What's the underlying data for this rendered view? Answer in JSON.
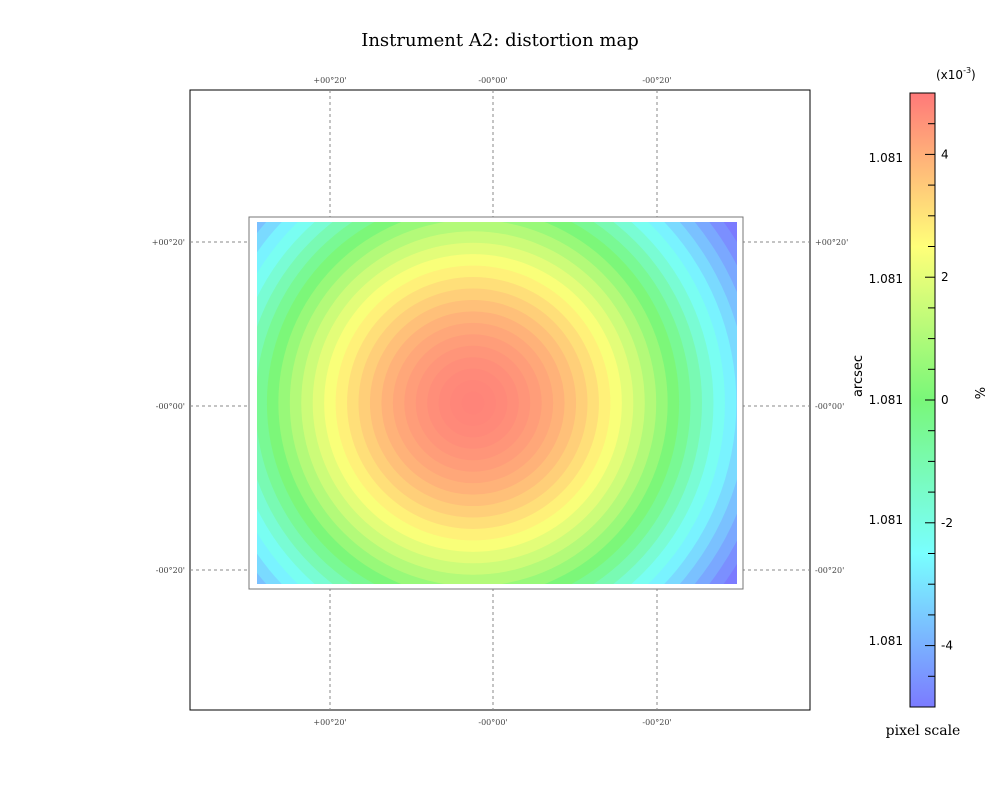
{
  "chart_data": {
    "type": "heatmap",
    "title": "Instrument A2: distortion map",
    "subtitle": "",
    "coordinate_ticks": {
      "top": [
        "+00°20'",
        "-00°00'",
        "-00°20'"
      ],
      "bottom": [
        "+00°20'",
        "-00°00'",
        "-00°20'"
      ],
      "left": [
        "+00°20'",
        "-00°00'",
        "-00°20'"
      ],
      "right": [
        "+00°20'",
        "-00°00'",
        "-00°20'"
      ]
    },
    "grid": true,
    "map": {
      "pattern": "radial",
      "peak_value": 4.8,
      "edge_value": -2.0,
      "corner_value": -4.5,
      "center_offset_x": -0.05,
      "center_offset_y": 0.0
    },
    "colorbar": {
      "label": "pixel scale",
      "multiplier": "(x10",
      "multiplier_exp": "-3",
      "multiplier_close": ")",
      "min": -5,
      "max": 5,
      "major_ticks": [
        -4,
        -2,
        0,
        2,
        4
      ],
      "major_tick_labels": [
        "-4",
        "-2",
        "0",
        "2",
        "4"
      ],
      "minor_step": 0.5,
      "left_axis_label": "arcsec",
      "left_axis_ticks": [
        "1.081",
        "1.081",
        "1.081",
        "1.081",
        "1.081"
      ],
      "right_axis_label": "%",
      "colors": [
        "#7b7bff",
        "#79ffff",
        "#79f779",
        "#ffff79",
        "#ff7979"
      ]
    }
  }
}
